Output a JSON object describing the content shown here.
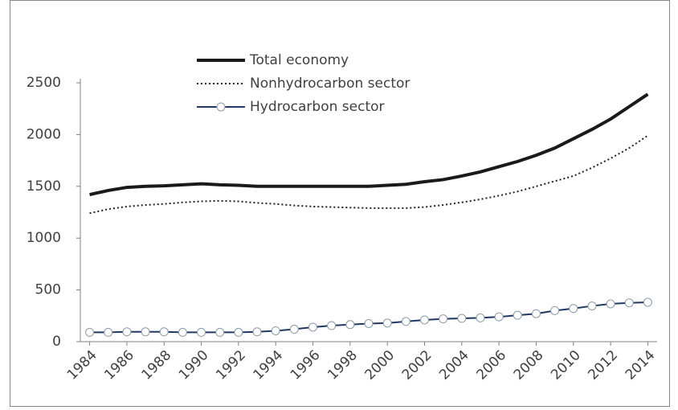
{
  "chart_data": {
    "type": "line",
    "x": [
      1984,
      1985,
      1986,
      1987,
      1988,
      1989,
      1990,
      1991,
      1992,
      1993,
      1994,
      1995,
      1996,
      1997,
      1998,
      1999,
      2000,
      2001,
      2002,
      2003,
      2004,
      2005,
      2006,
      2007,
      2008,
      2009,
      2010,
      2011,
      2012,
      2013,
      2014
    ],
    "series": [
      {
        "name": "Total economy",
        "color": "#1a1a1a",
        "style": "solid",
        "width": 4,
        "values": [
          1420,
          1460,
          1490,
          1500,
          1505,
          1515,
          1525,
          1515,
          1510,
          1500,
          1500,
          1500,
          1500,
          1500,
          1500,
          1500,
          1510,
          1520,
          1545,
          1565,
          1600,
          1640,
          1690,
          1740,
          1800,
          1870,
          1960,
          2050,
          2150,
          2270,
          2390
        ]
      },
      {
        "name": "Nonhydrocarbon sector",
        "color": "#222222",
        "style": "dotted",
        "width": 2,
        "values": [
          1240,
          1280,
          1305,
          1320,
          1330,
          1345,
          1355,
          1360,
          1355,
          1340,
          1330,
          1315,
          1305,
          1300,
          1295,
          1290,
          1290,
          1290,
          1300,
          1320,
          1345,
          1375,
          1410,
          1450,
          1500,
          1550,
          1600,
          1680,
          1770,
          1870,
          1990
        ]
      },
      {
        "name": "Hydrocarbon sector",
        "color": "#1f3864",
        "style": "solid",
        "width": 2,
        "marker": "circle",
        "marker_color": "#8a9aa8",
        "values": [
          90,
          90,
          95,
          95,
          95,
          90,
          90,
          90,
          90,
          95,
          105,
          120,
          140,
          155,
          165,
          175,
          180,
          195,
          210,
          220,
          225,
          230,
          240,
          255,
          270,
          300,
          320,
          345,
          365,
          375,
          380
        ]
      }
    ],
    "xlim": [
      1983.5,
      2014.5
    ],
    "xticks": [
      1984,
      1986,
      1988,
      1990,
      1992,
      1994,
      1996,
      1998,
      2000,
      2002,
      2004,
      2006,
      2008,
      2010,
      2012,
      2014
    ],
    "ylim": [
      0,
      2500
    ],
    "yticks": [
      0,
      500,
      1000,
      1500,
      2000,
      2500
    ],
    "grid": false,
    "legend": "top-center"
  }
}
